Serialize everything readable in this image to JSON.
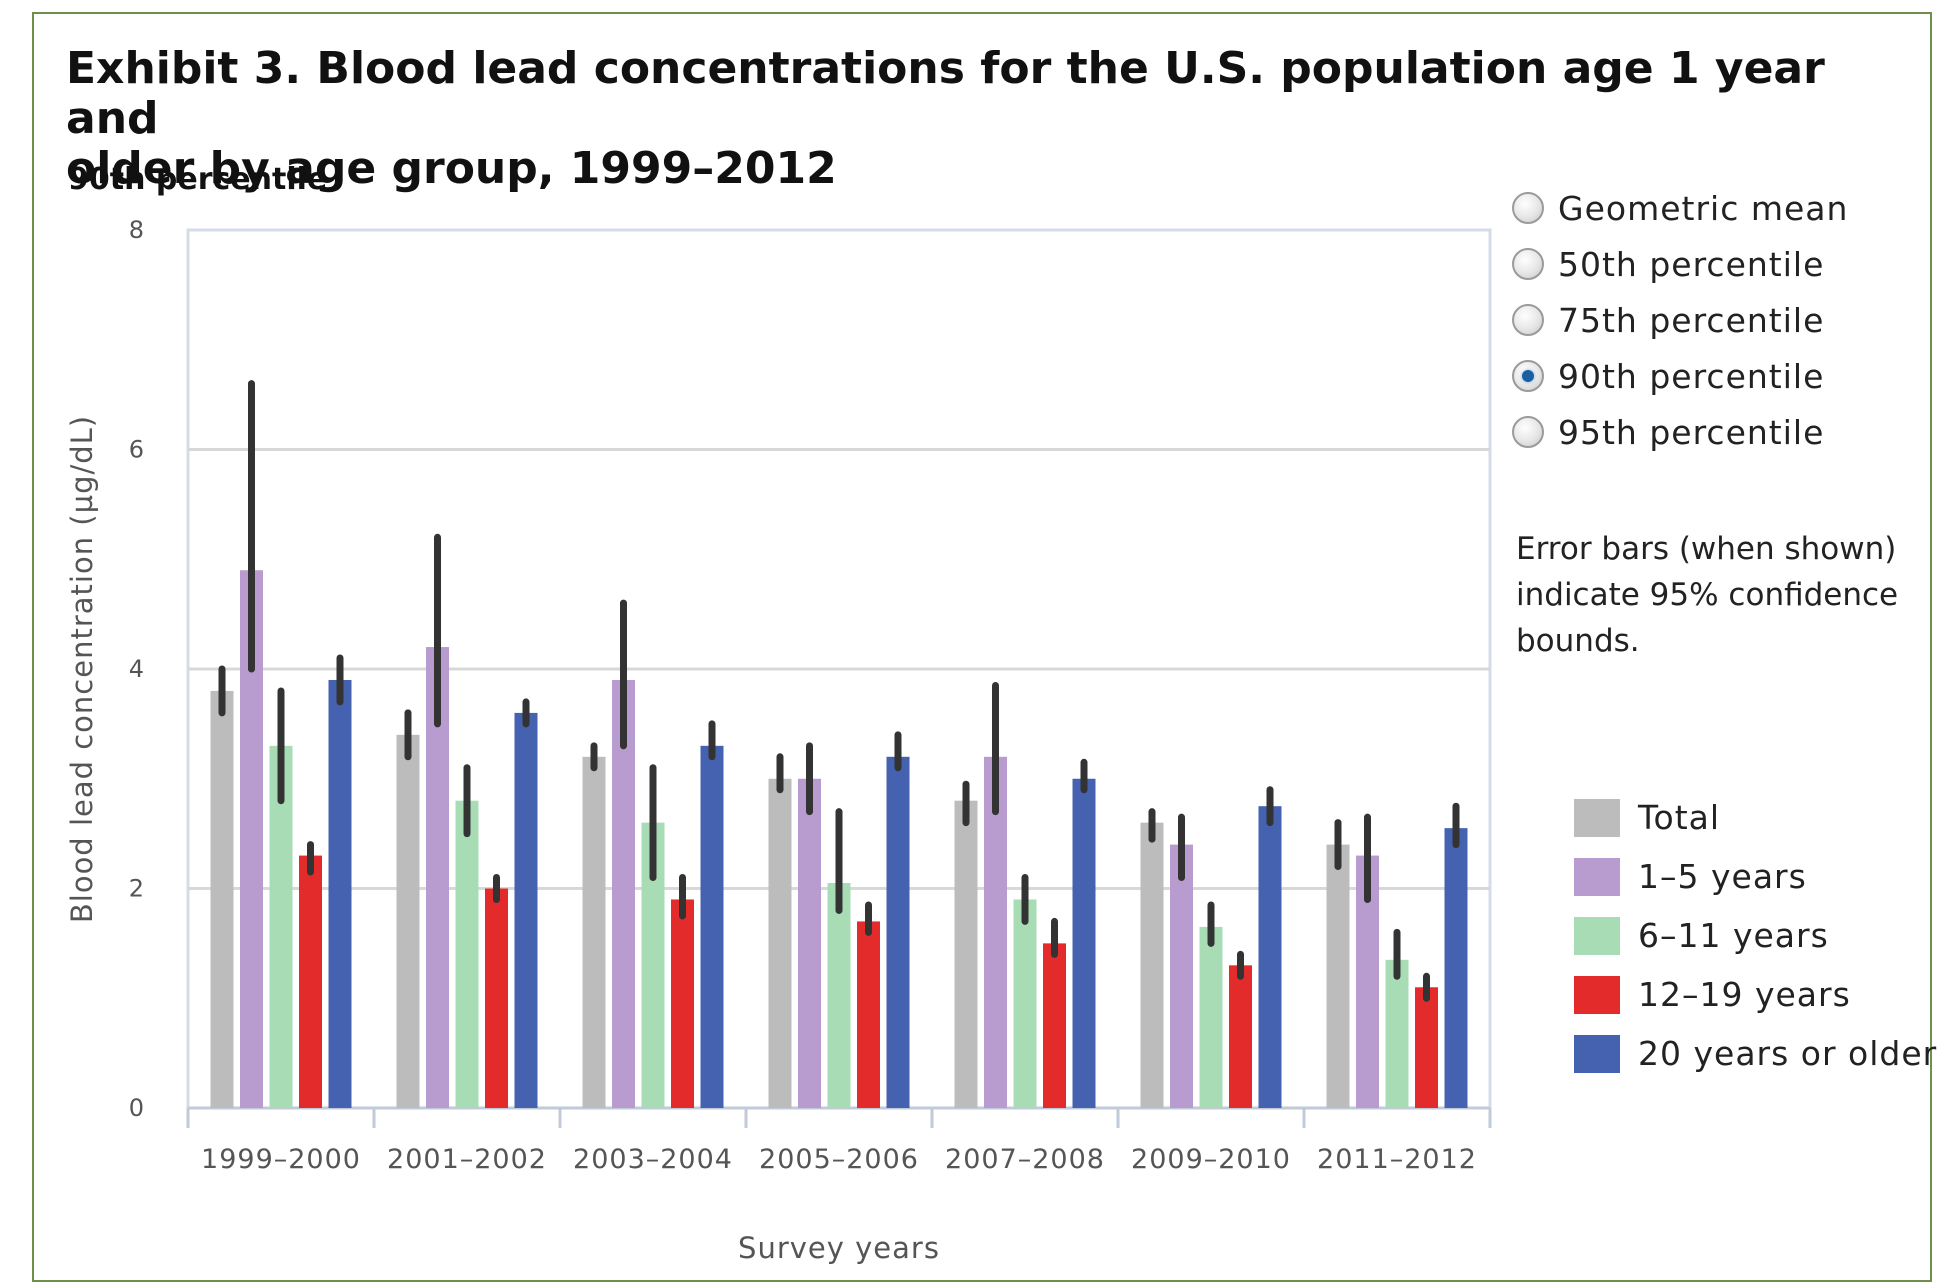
{
  "title": "Exhibit 3. Blood lead concentrations for the U.S. population age 1 year and\nolder by age group, 1999–2012",
  "subtitle": "90th percentile",
  "controls": {
    "options": [
      {
        "label": "Geometric mean",
        "checked": false
      },
      {
        "label": "50th percentile",
        "checked": false
      },
      {
        "label": "75th percentile",
        "checked": false
      },
      {
        "label": "90th percentile",
        "checked": true
      },
      {
        "label": "95th percentile",
        "checked": false
      }
    ]
  },
  "note": "Error bars (when shown)\nindicate 95% confidence\nbounds.",
  "chart_data": {
    "type": "bar",
    "xlabel": "Survey years",
    "ylabel": "Blood lead concentration (µg/dL)",
    "ylim": [
      0,
      8
    ],
    "yticks": [
      0,
      2,
      4,
      6,
      8
    ],
    "grid": true,
    "legend_position": "right",
    "categories": [
      "1999–2000",
      "2001–2002",
      "2003–2004",
      "2005–2006",
      "2007–2008",
      "2009–2010",
      "2011–2012"
    ],
    "series": [
      {
        "name": "Total",
        "color": "#bcbcbc",
        "values": [
          3.8,
          3.4,
          3.2,
          3.0,
          2.8,
          2.6,
          2.4
        ],
        "ci": [
          [
            3.6,
            4.0
          ],
          [
            3.2,
            3.6
          ],
          [
            3.1,
            3.3
          ],
          [
            2.9,
            3.2
          ],
          [
            2.6,
            2.95
          ],
          [
            2.45,
            2.7
          ],
          [
            2.2,
            2.6
          ]
        ]
      },
      {
        "name": "1–5 years",
        "color": "#b89ccf",
        "values": [
          4.9,
          4.2,
          3.9,
          3.0,
          3.2,
          2.4,
          2.3
        ],
        "ci": [
          [
            4.0,
            6.6
          ],
          [
            3.5,
            5.2
          ],
          [
            3.3,
            4.6
          ],
          [
            2.7,
            3.3
          ],
          [
            2.7,
            3.85
          ],
          [
            2.1,
            2.65
          ],
          [
            1.9,
            2.65
          ]
        ]
      },
      {
        "name": "6–11 years",
        "color": "#a7dcb5",
        "values": [
          3.3,
          2.8,
          2.6,
          2.05,
          1.9,
          1.65,
          1.35
        ],
        "ci": [
          [
            2.8,
            3.8
          ],
          [
            2.5,
            3.1
          ],
          [
            2.1,
            3.1
          ],
          [
            1.8,
            2.7
          ],
          [
            1.7,
            2.1
          ],
          [
            1.5,
            1.85
          ],
          [
            1.2,
            1.6
          ]
        ]
      },
      {
        "name": "12–19 years",
        "color": "#e32b2b",
        "values": [
          2.3,
          2.0,
          1.9,
          1.7,
          1.5,
          1.3,
          1.1
        ],
        "ci": [
          [
            2.15,
            2.4
          ],
          [
            1.9,
            2.1
          ],
          [
            1.75,
            2.1
          ],
          [
            1.6,
            1.85
          ],
          [
            1.4,
            1.7
          ],
          [
            1.2,
            1.4
          ],
          [
            1.0,
            1.2
          ]
        ]
      },
      {
        "name": "20 years or older",
        "color": "#4462b0",
        "values": [
          3.9,
          3.6,
          3.3,
          3.2,
          3.0,
          2.75,
          2.55
        ],
        "ci": [
          [
            3.7,
            4.1
          ],
          [
            3.5,
            3.7
          ],
          [
            3.2,
            3.5
          ],
          [
            3.1,
            3.4
          ],
          [
            2.9,
            3.15
          ],
          [
            2.6,
            2.9
          ],
          [
            2.4,
            2.75
          ]
        ]
      }
    ]
  }
}
